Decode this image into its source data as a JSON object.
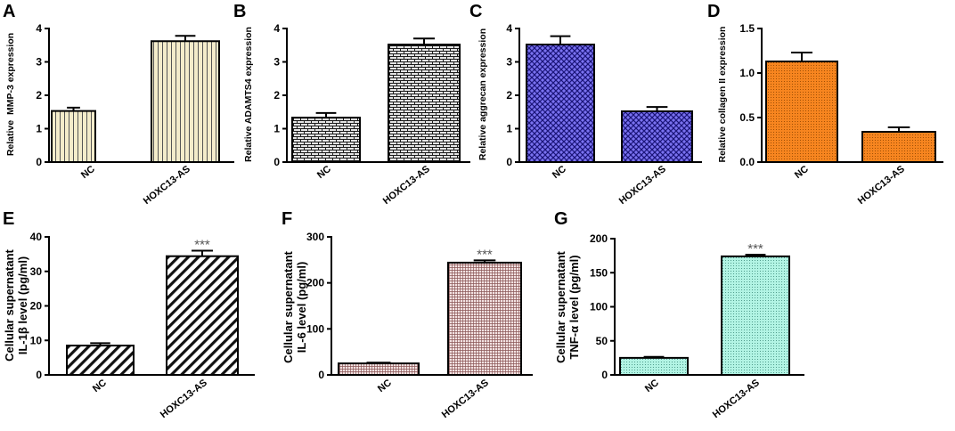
{
  "chart_data": [
    {
      "panel_label": "A",
      "type": "bar",
      "categories": [
        "NC",
        "HOXC13-AS"
      ],
      "values": [
        1.53,
        3.62
      ],
      "errors": [
        0.1,
        0.16
      ],
      "ylabel": [
        "Relative  MMP-3 expression"
      ],
      "ylim": [
        0,
        4
      ],
      "yticks": [
        0,
        1,
        2,
        3,
        4
      ],
      "ytick_labels": [
        "0",
        "1",
        "2",
        "3",
        "4"
      ],
      "bar_color": "#f4ecca",
      "pattern_color": "#555555"
    },
    {
      "panel_label": "B",
      "type": "bar",
      "categories": [
        "NC",
        "HOXC13-AS"
      ],
      "values": [
        1.33,
        3.52
      ],
      "errors": [
        0.14,
        0.18
      ],
      "ylabel": [
        "Relative ADAMTS4 expression"
      ],
      "ylim": [
        0,
        4
      ],
      "yticks": [
        0,
        1,
        2,
        3,
        4
      ],
      "ytick_labels": [
        "0",
        "1",
        "2",
        "3",
        "4"
      ],
      "bar_color": "#e4e4e4",
      "pattern_color": "#1c1c1c"
    },
    {
      "panel_label": "C",
      "type": "bar",
      "categories": [
        "NC",
        "HOXC13-AS"
      ],
      "values": [
        3.52,
        1.52
      ],
      "errors": [
        0.25,
        0.13
      ],
      "ylabel": [
        "Relative aggrecan expression"
      ],
      "ylim": [
        0,
        4
      ],
      "yticks": [
        0,
        1,
        2,
        3,
        4
      ],
      "ytick_labels": [
        "0",
        "1",
        "2",
        "3",
        "4"
      ],
      "bar_color": "#7a72f0",
      "pattern_color": "#1a1478"
    },
    {
      "panel_label": "D",
      "type": "bar",
      "categories": [
        "NC",
        "HOXC13-AS"
      ],
      "values": [
        1.13,
        0.34
      ],
      "errors": [
        0.1,
        0.05
      ],
      "ylabel": [
        "Relative collagen II expression"
      ],
      "ylim": [
        0,
        1.5
      ],
      "yticks": [
        0,
        0.5,
        1,
        1.5
      ],
      "ytick_labels": [
        "0.0",
        "0.5",
        "1.0",
        "1.5"
      ],
      "bar_color": "#f7851f",
      "pattern_color": "#8c4300"
    },
    {
      "panel_label": "E",
      "type": "bar",
      "categories": [
        "NC",
        "HOXC13-AS"
      ],
      "values": [
        8.5,
        34.4
      ],
      "errors": [
        0.7,
        1.6
      ],
      "significance": [
        null,
        "***"
      ],
      "ylabel": [
        "Cellular supernatant",
        "IL-1β level (pg/ml)"
      ],
      "ylim": [
        0,
        40
      ],
      "yticks": [
        0,
        10,
        20,
        30,
        40
      ],
      "ytick_labels": [
        "0",
        "10",
        "20",
        "30",
        "40"
      ],
      "bar_color": "#ffffff",
      "pattern_color": "#111111"
    },
    {
      "panel_label": "F",
      "type": "bar",
      "categories": [
        "NC",
        "HOXC13-AS"
      ],
      "values": [
        25,
        244
      ],
      "errors": [
        1.5,
        5
      ],
      "significance": [
        null,
        "***"
      ],
      "ylabel": [
        "Cellular supernatant",
        "IL-6 level (pg/ml)"
      ],
      "ylim": [
        0,
        300
      ],
      "yticks": [
        0,
        100,
        200,
        300
      ],
      "ytick_labels": [
        "0",
        "100",
        "200",
        "300"
      ],
      "bar_color": "#f3e2e2",
      "pattern_color": "#8a5656"
    },
    {
      "panel_label": "G",
      "type": "bar",
      "categories": [
        "NC",
        "HOXC13-AS"
      ],
      "values": [
        25,
        174
      ],
      "errors": [
        1.5,
        2.5
      ],
      "significance": [
        null,
        "***"
      ],
      "ylabel": [
        "Cellular supernatant",
        "TNF-α level (pg/ml)"
      ],
      "ylim": [
        0,
        200
      ],
      "yticks": [
        0,
        50,
        100,
        150,
        200
      ],
      "ytick_labels": [
        "0",
        "50",
        "100",
        "150",
        "200"
      ],
      "bar_color": "#b2f4e4",
      "pattern_color": "#3a8a78"
    }
  ]
}
